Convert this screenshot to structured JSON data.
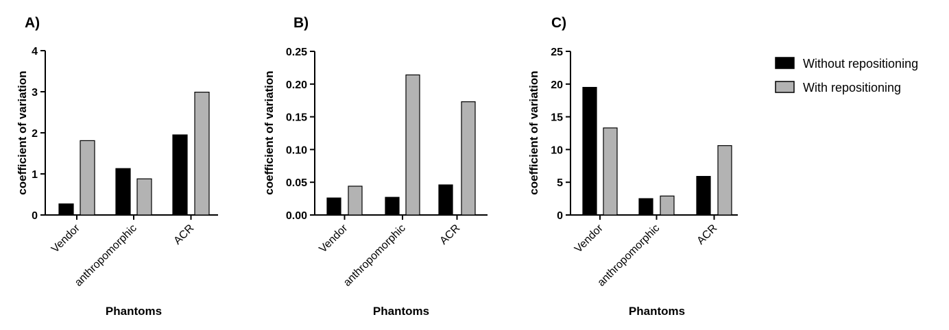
{
  "legend": {
    "position": "top-right",
    "items": [
      {
        "label": "Without repositioning",
        "color": "#000000"
      },
      {
        "label": "With repositioning",
        "color": "#b3b3b3"
      }
    ]
  },
  "chart_data": [
    {
      "panel_label": "A)",
      "type": "bar",
      "title": "",
      "xlabel": "Phantoms",
      "ylabel": "coefficient of variation",
      "categories": [
        "Vendor",
        "anthropomorphic",
        "ACR"
      ],
      "ylim": [
        0,
        4
      ],
      "yticks": [
        "0",
        "1",
        "2",
        "3",
        "4"
      ],
      "series": [
        {
          "name": "Without repositioning",
          "values": [
            0.27,
            1.13,
            1.95
          ]
        },
        {
          "name": "With repositioning",
          "values": [
            1.81,
            0.88,
            2.99
          ]
        }
      ]
    },
    {
      "panel_label": "B)",
      "type": "bar",
      "title": "",
      "xlabel": "Phantoms",
      "ylabel": "coefficient of variation",
      "categories": [
        "Vendor",
        "anthropomorphic",
        "ACR"
      ],
      "ylim": [
        0,
        0.25
      ],
      "yticks": [
        "0.00",
        "0.05",
        "0.10",
        "0.15",
        "0.20",
        "0.25"
      ],
      "series": [
        {
          "name": "Without repositioning",
          "values": [
            0.026,
            0.027,
            0.046
          ]
        },
        {
          "name": "With repositioning",
          "values": [
            0.044,
            0.214,
            0.173
          ]
        }
      ]
    },
    {
      "panel_label": "C)",
      "type": "bar",
      "title": "",
      "xlabel": "Phantoms",
      "ylabel": "coefficient of variation",
      "categories": [
        "Vendor",
        "anthropomorphic",
        "ACR"
      ],
      "ylim": [
        0,
        25
      ],
      "yticks": [
        "0",
        "5",
        "10",
        "15",
        "20",
        "25"
      ],
      "series": [
        {
          "name": "Without repositioning",
          "values": [
            19.5,
            2.5,
            5.9
          ]
        },
        {
          "name": "With repositioning",
          "values": [
            13.3,
            2.9,
            10.6
          ]
        }
      ]
    }
  ]
}
